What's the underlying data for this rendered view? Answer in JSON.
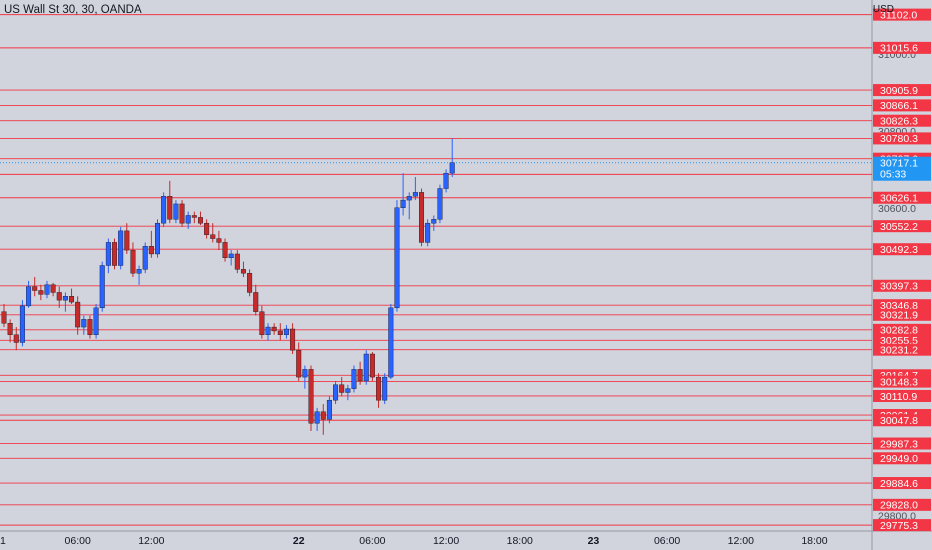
{
  "header": {
    "symbol_title": "US Wall St 30, 30, OANDA",
    "currency": "USD"
  },
  "colors": {
    "background": "#d1d4dc",
    "axis_background": "#d1d4dc",
    "level_line": "#f23645",
    "level_label_bg": "#f23645",
    "up_candle": "#2962ff",
    "down_candle": "#c62a2a",
    "current_price_bg": "#2196f3",
    "axis_text": "#131722",
    "grid_text": "#50535e"
  },
  "chart_data": {
    "type": "candlestick",
    "instrument": "US Wall St 30",
    "interval": "30",
    "source": "OANDA",
    "ylim": [
      29760,
      31140
    ],
    "xlim_bars": [
      -1,
      120
    ],
    "y_ticks": [
      30600.0,
      30800.0,
      31000.0,
      29800.0
    ],
    "x_ticks": [
      {
        "bar": -1,
        "label": "1"
      },
      {
        "bar": 12,
        "label": "06:00"
      },
      {
        "bar": 24,
        "label": "12:00"
      },
      {
        "bar": 48,
        "label": "22"
      },
      {
        "bar": 60,
        "label": "06:00"
      },
      {
        "bar": 72,
        "label": "12:00"
      },
      {
        "bar": 84,
        "label": "18:00"
      },
      {
        "bar": 96,
        "label": "23"
      },
      {
        "bar": 108,
        "label": "06:00"
      },
      {
        "bar": 120,
        "label": "12:00"
      },
      {
        "bar": 132,
        "label": "18:00"
      }
    ],
    "levels": [
      31102.0,
      31015.6,
      30905.9,
      30866.1,
      30826.3,
      30780.3,
      30727.6,
      30686.8,
      30626.1,
      30552.2,
      30492.3,
      30397.3,
      30346.8,
      30321.9,
      30282.8,
      30255.5,
      30231.2,
      30164.7,
      30148.3,
      30110.9,
      30061.4,
      30047.8,
      29987.3,
      29949.0,
      29884.6,
      29828.0,
      29775.3
    ],
    "current_price": {
      "value": 30717.1,
      "countdown": "05:33"
    },
    "candles": [
      [
        30330,
        30350,
        30290,
        30300
      ],
      [
        30300,
        30310,
        30250,
        30270
      ],
      [
        30270,
        30290,
        30230,
        30250
      ],
      [
        30250,
        30360,
        30240,
        30345
      ],
      [
        30345,
        30410,
        30340,
        30395
      ],
      [
        30395,
        30420,
        30370,
        30385
      ],
      [
        30385,
        30400,
        30360,
        30375
      ],
      [
        30375,
        30410,
        30365,
        30400
      ],
      [
        30400,
        30405,
        30370,
        30380
      ],
      [
        30380,
        30395,
        30340,
        30360
      ],
      [
        30360,
        30380,
        30330,
        30370
      ],
      [
        30370,
        30390,
        30350,
        30355
      ],
      [
        30355,
        30370,
        30270,
        30290
      ],
      [
        30290,
        30320,
        30270,
        30310
      ],
      [
        30310,
        30320,
        30260,
        30270
      ],
      [
        30270,
        30350,
        30260,
        30340
      ],
      [
        30340,
        30460,
        30330,
        30450
      ],
      [
        30450,
        30520,
        30430,
        30510
      ],
      [
        30510,
        30520,
        30440,
        30450
      ],
      [
        30450,
        30550,
        30440,
        30540
      ],
      [
        30540,
        30560,
        30480,
        30490
      ],
      [
        30490,
        30510,
        30420,
        30430
      ],
      [
        30430,
        30450,
        30400,
        30440
      ],
      [
        30440,
        30510,
        30430,
        30500
      ],
      [
        30500,
        30540,
        30470,
        30480
      ],
      [
        30480,
        30570,
        30470,
        30560
      ],
      [
        30560,
        30640,
        30550,
        30630
      ],
      [
        30630,
        30670,
        30560,
        30570
      ],
      [
        30570,
        30620,
        30560,
        30610
      ],
      [
        30610,
        30620,
        30550,
        30560
      ],
      [
        30560,
        30590,
        30545,
        30580
      ],
      [
        30580,
        30590,
        30560,
        30575
      ],
      [
        30575,
        30590,
        30555,
        30560
      ],
      [
        30560,
        30570,
        30520,
        30530
      ],
      [
        30530,
        30560,
        30510,
        30520
      ],
      [
        30520,
        30540,
        30490,
        30510
      ],
      [
        30510,
        30520,
        30460,
        30470
      ],
      [
        30470,
        30490,
        30450,
        30480
      ],
      [
        30480,
        30490,
        30430,
        30440
      ],
      [
        30440,
        30460,
        30420,
        30430
      ],
      [
        30430,
        30440,
        30370,
        30380
      ],
      [
        30380,
        30400,
        30320,
        30330
      ],
      [
        30330,
        30345,
        30260,
        30270
      ],
      [
        30270,
        30300,
        30255,
        30290
      ],
      [
        30290,
        30300,
        30270,
        30280
      ],
      [
        30280,
        30300,
        30255,
        30270
      ],
      [
        30270,
        30295,
        30260,
        30285
      ],
      [
        30285,
        30300,
        30220,
        30230
      ],
      [
        30230,
        30250,
        30150,
        30160
      ],
      [
        30160,
        30190,
        30130,
        30180
      ],
      [
        30180,
        30190,
        30020,
        30040
      ],
      [
        30040,
        30080,
        30020,
        30070
      ],
      [
        30070,
        30090,
        30010,
        30050
      ],
      [
        30050,
        30110,
        30040,
        30100
      ],
      [
        30100,
        30150,
        30090,
        30140
      ],
      [
        30140,
        30160,
        30110,
        30120
      ],
      [
        30120,
        30140,
        30100,
        30130
      ],
      [
        30130,
        30190,
        30120,
        30180
      ],
      [
        30180,
        30200,
        30140,
        30150
      ],
      [
        30150,
        30230,
        30140,
        30220
      ],
      [
        30220,
        30225,
        30150,
        30160
      ],
      [
        30160,
        30170,
        30080,
        30100
      ],
      [
        30100,
        30170,
        30090,
        30160
      ],
      [
        30160,
        30350,
        30155,
        30340
      ],
      [
        30340,
        30620,
        30330,
        30600
      ],
      [
        30600,
        30690,
        30580,
        30620
      ],
      [
        30620,
        30640,
        30570,
        30630
      ],
      [
        30630,
        30680,
        30620,
        30640
      ],
      [
        30640,
        30650,
        30500,
        30510
      ],
      [
        30510,
        30570,
        30500,
        30560
      ],
      [
        30560,
        30580,
        30540,
        30570
      ],
      [
        30570,
        30660,
        30560,
        30650
      ],
      [
        30650,
        30700,
        30640,
        30690
      ],
      [
        30690,
        30780,
        30680,
        30717.1
      ]
    ],
    "candle_start_bar": 0
  }
}
